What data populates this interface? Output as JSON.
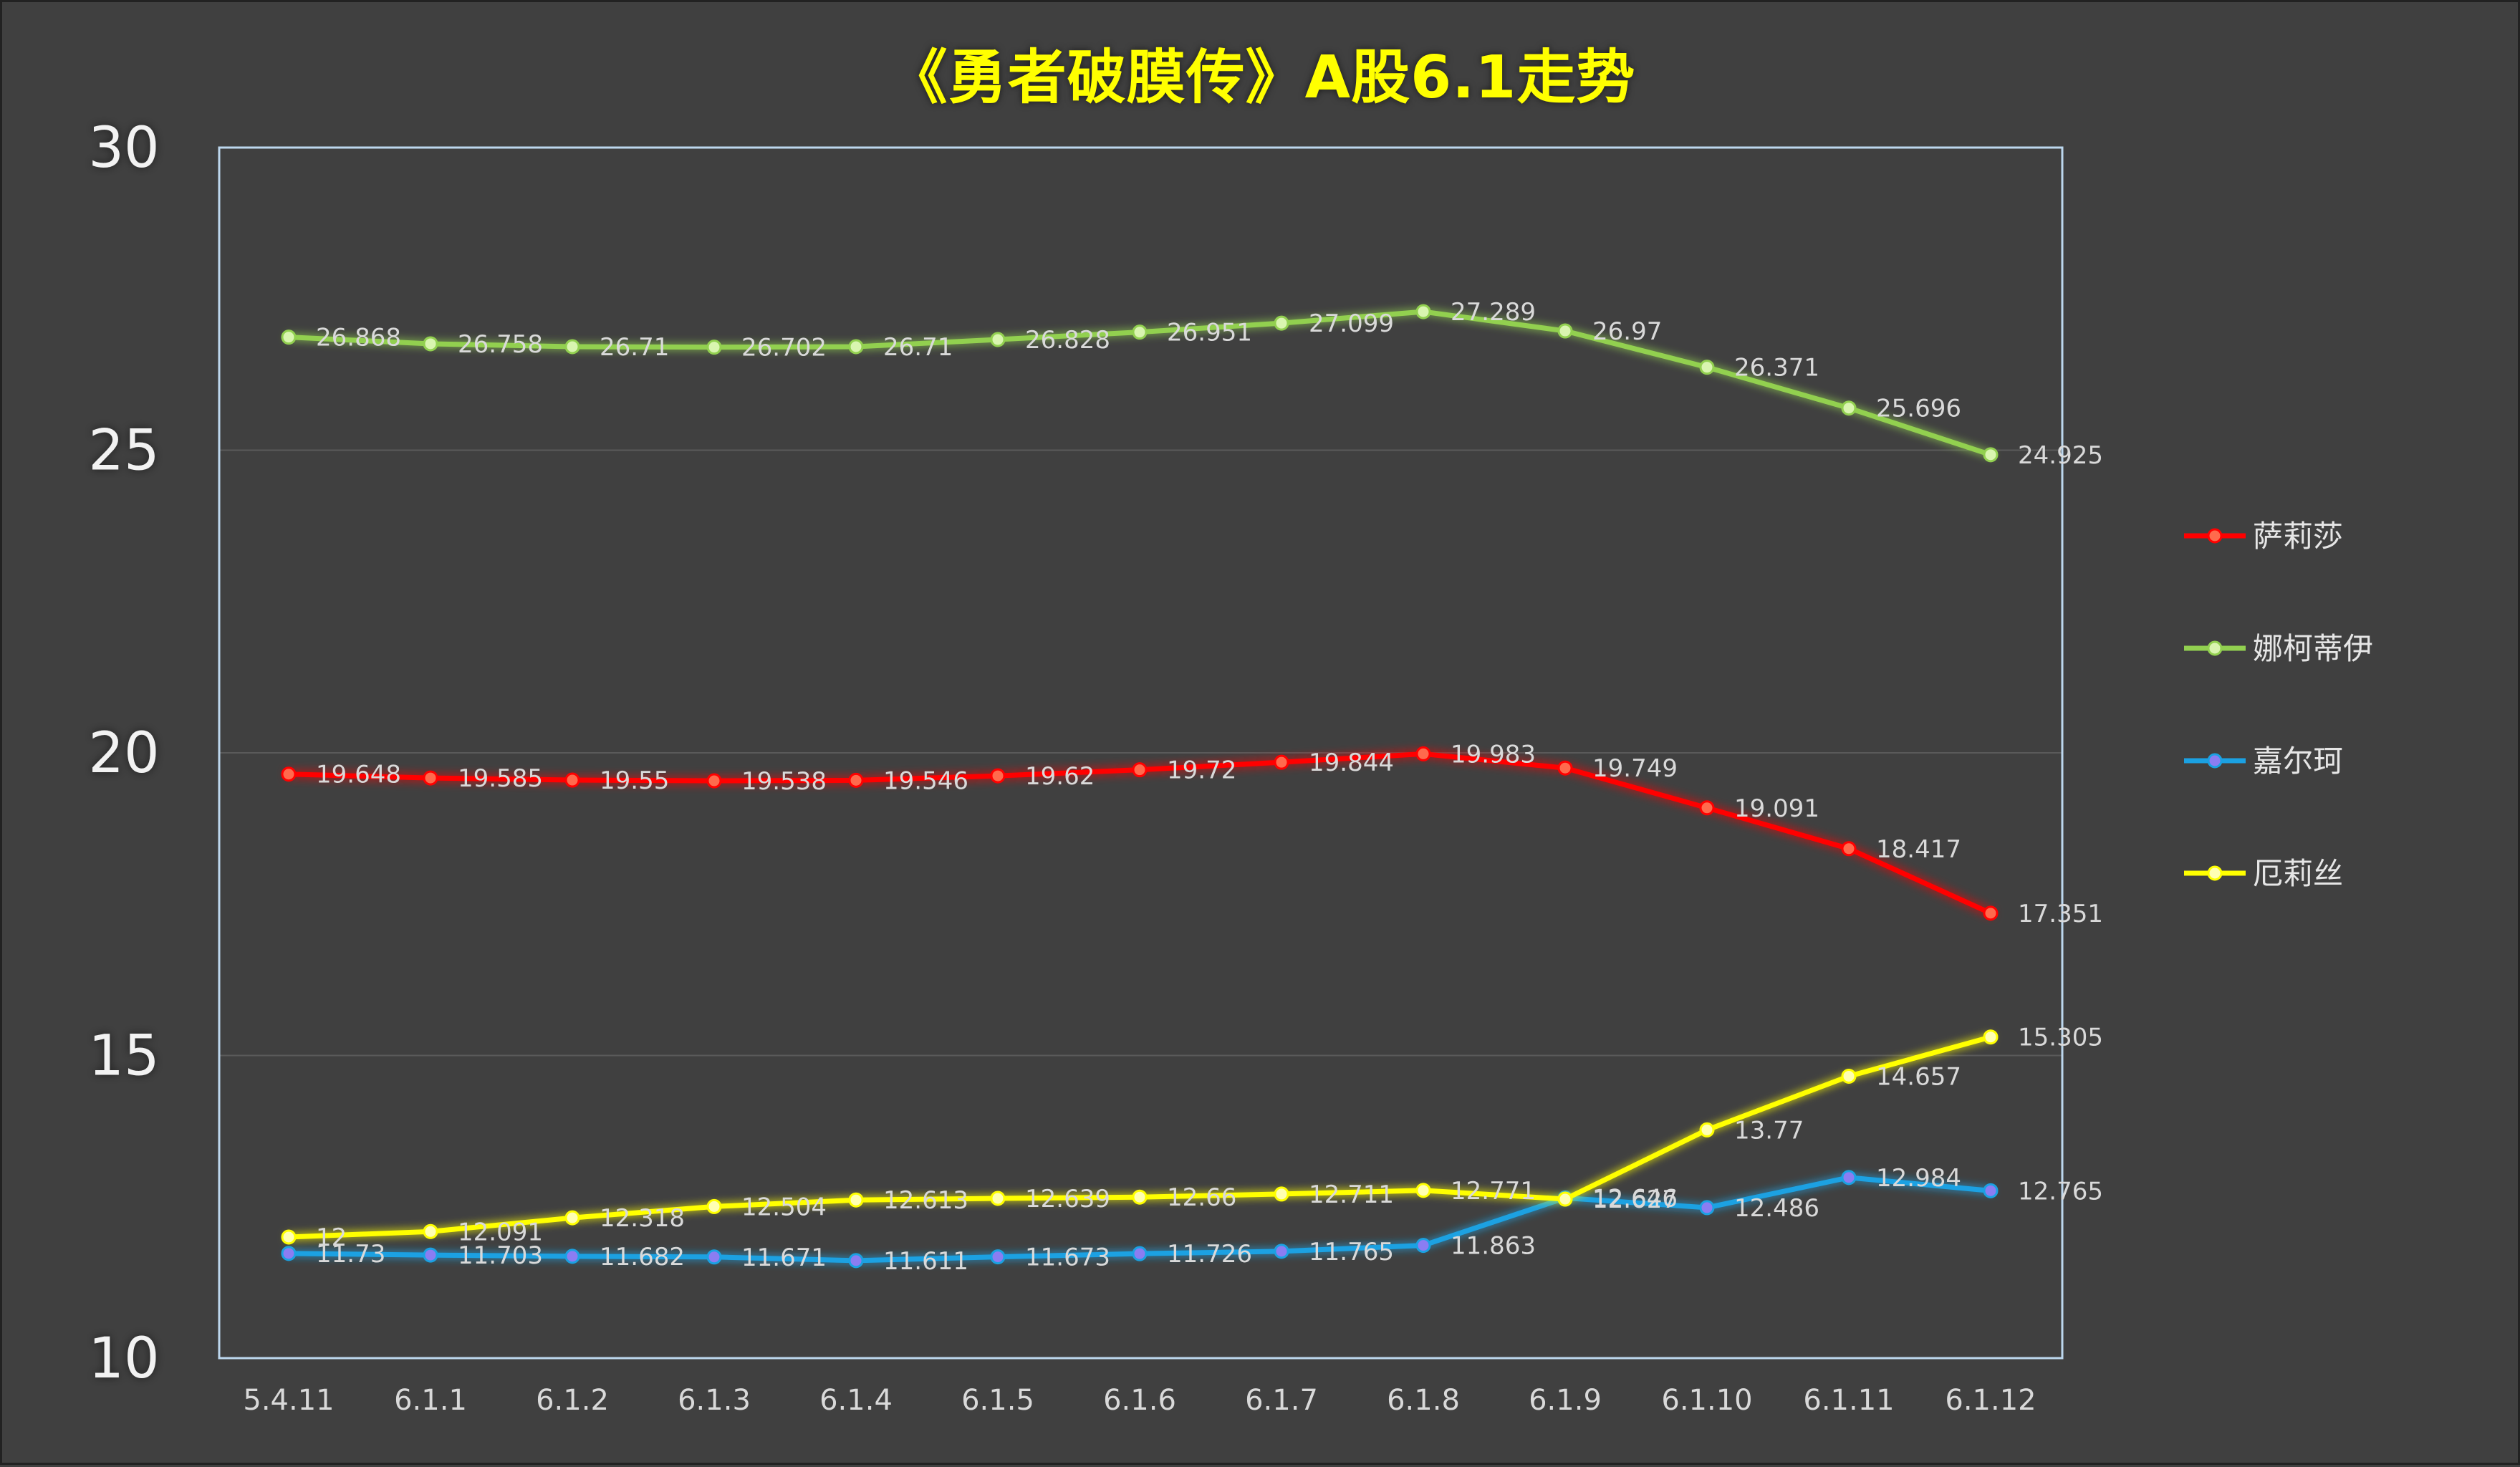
{
  "chart_data": {
    "type": "line",
    "title": "《勇者破膜传》A股6.1走势",
    "categories": [
      "5.4.11",
      "6.1.1",
      "6.1.2",
      "6.1.3",
      "6.1.4",
      "6.1.5",
      "6.1.6",
      "6.1.7",
      "6.1.8",
      "6.1.9",
      "6.1.10",
      "6.1.11",
      "6.1.12"
    ],
    "ylim": [
      10,
      30
    ],
    "yticks": [
      10,
      15,
      20,
      25,
      30
    ],
    "grid": true,
    "legend_position": "right",
    "series": [
      {
        "name": "萨莉莎",
        "color": "#ff0000",
        "values": [
          19.648,
          19.585,
          19.55,
          19.538,
          19.546,
          19.62,
          19.72,
          19.844,
          19.983,
          19.749,
          19.091,
          18.417,
          17.351
        ]
      },
      {
        "name": "娜柯蒂伊",
        "color": "#92d050",
        "values": [
          26.868,
          26.758,
          26.71,
          26.702,
          26.71,
          26.828,
          26.951,
          27.099,
          27.289,
          26.97,
          26.371,
          25.696,
          24.925
        ]
      },
      {
        "name": "嘉尔珂",
        "color": "#1ba1e2",
        "values": [
          11.73,
          11.703,
          11.682,
          11.671,
          11.611,
          11.673,
          11.726,
          11.765,
          11.863,
          12.646,
          12.486,
          12.984,
          12.765
        ]
      },
      {
        "name": "厄莉丝",
        "color": "#ffff00",
        "values": [
          12,
          12.091,
          12.318,
          12.504,
          12.613,
          12.639,
          12.66,
          12.711,
          12.771,
          12.627,
          13.77,
          14.657,
          15.305
        ]
      }
    ]
  }
}
